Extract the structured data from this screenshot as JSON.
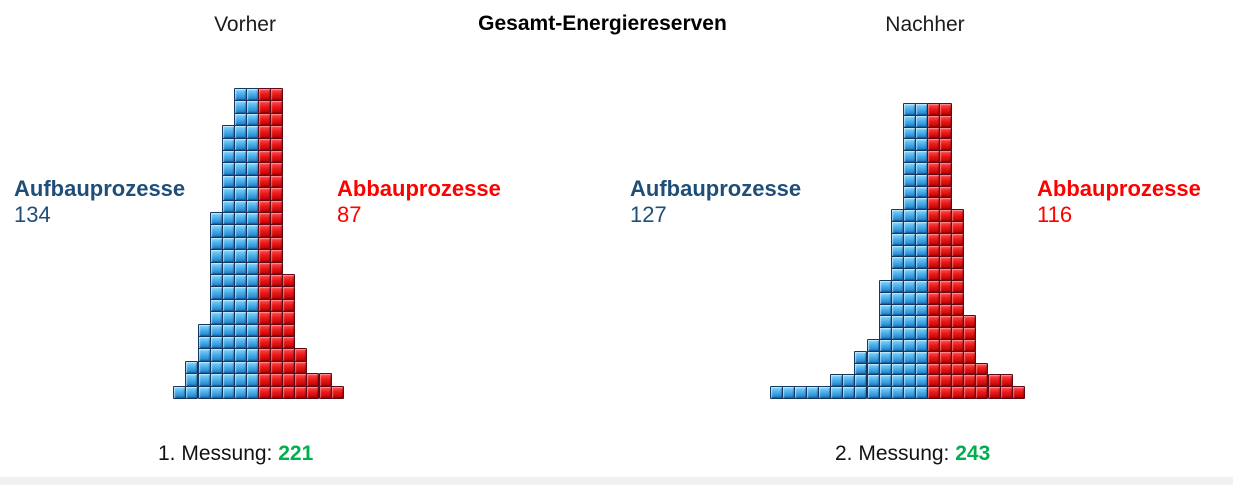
{
  "chart_data": {
    "type": "pictogram-pyramid",
    "title": "Gesamt-Energiereserven",
    "colors": {
      "blue_tile": "#1b7ecb",
      "red_tile": "#d40000",
      "blue_text": "#1F4E79",
      "red_text": "#FF0000",
      "green_text": "#00B050"
    },
    "panels": [
      {
        "name": "Vorher",
        "blue_label": "Aufbauprozesse",
        "blue_value": 134,
        "red_label": "Abbauprozesse",
        "red_value": 87,
        "measurement_label": "1. Messung:",
        "measurement_value": 221,
        "rows": [
          [
            2,
            2
          ],
          [
            2,
            2
          ],
          [
            2,
            2
          ],
          [
            3,
            2
          ],
          [
            3,
            2
          ],
          [
            3,
            2
          ],
          [
            3,
            2
          ],
          [
            3,
            2
          ],
          [
            3,
            2
          ],
          [
            3,
            2
          ],
          [
            4,
            2
          ],
          [
            4,
            2
          ],
          [
            4,
            2
          ],
          [
            4,
            2
          ],
          [
            4,
            2
          ],
          [
            4,
            3
          ],
          [
            4,
            3
          ],
          [
            4,
            3
          ],
          [
            4,
            3
          ],
          [
            5,
            3
          ],
          [
            5,
            3
          ],
          [
            5,
            4
          ],
          [
            6,
            4
          ],
          [
            6,
            6
          ],
          [
            7,
            7
          ]
        ]
      },
      {
        "name": "Nachher",
        "blue_label": "Aufbauprozesse",
        "blue_value": 127,
        "red_label": "Abbauprozesse",
        "red_value": 116,
        "measurement_label": "2. Messung:",
        "measurement_value": 243,
        "rows": [
          [
            2,
            2
          ],
          [
            2,
            2
          ],
          [
            2,
            2
          ],
          [
            2,
            2
          ],
          [
            2,
            2
          ],
          [
            2,
            2
          ],
          [
            2,
            2
          ],
          [
            2,
            2
          ],
          [
            2,
            2
          ],
          [
            3,
            3
          ],
          [
            3,
            3
          ],
          [
            3,
            3
          ],
          [
            3,
            3
          ],
          [
            3,
            3
          ],
          [
            3,
            3
          ],
          [
            4,
            3
          ],
          [
            4,
            3
          ],
          [
            4,
            3
          ],
          [
            4,
            4
          ],
          [
            4,
            4
          ],
          [
            5,
            4
          ],
          [
            6,
            4
          ],
          [
            6,
            5
          ],
          [
            8,
            7
          ],
          [
            13,
            8
          ]
        ]
      }
    ]
  }
}
